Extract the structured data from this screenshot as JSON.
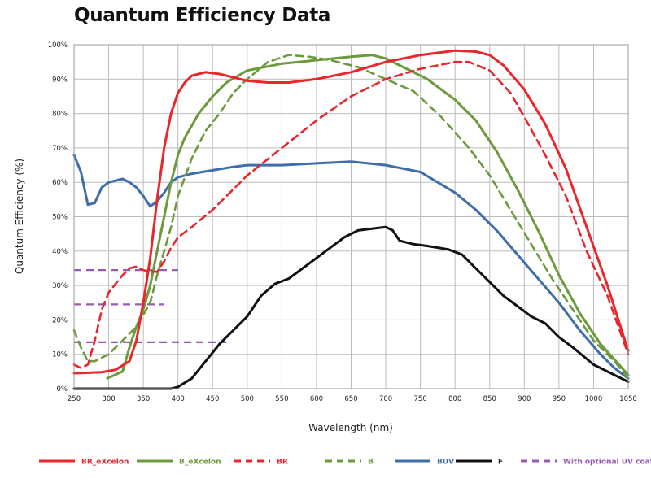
{
  "title": "Quantum Efficiency Data",
  "chart_data": {
    "type": "line",
    "title": "Quantum Efficiency Data",
    "xlabel": "Wavelength (nm)",
    "ylabel": "Quantum Efficiency (%)",
    "xlim": [
      250,
      1050
    ],
    "ylim": [
      0,
      100
    ],
    "xticks": [
      250,
      300,
      350,
      400,
      450,
      500,
      550,
      600,
      650,
      700,
      750,
      800,
      850,
      900,
      950,
      1000,
      1050
    ],
    "yticks": [
      0,
      10,
      20,
      30,
      40,
      50,
      60,
      70,
      80,
      90,
      100
    ],
    "xtick_labels": [
      "250",
      "300",
      "350",
      "400",
      "450",
      "500",
      "550",
      "600",
      "650",
      "700",
      "750",
      "800",
      "850",
      "900",
      "950",
      "1000",
      "1050"
    ],
    "ytick_labels": [
      "0%",
      "10%",
      "20%",
      "30%",
      "40%",
      "50%",
      "60%",
      "70%",
      "80%",
      "90%",
      "100%"
    ],
    "grid": true,
    "legend_position": "bottom",
    "series": [
      {
        "name": "BR_eXcelon",
        "color": "#e8262c",
        "dash": "solid",
        "points": [
          [
            250,
            4.5
          ],
          [
            290,
            4.8
          ],
          [
            310,
            5.5
          ],
          [
            330,
            8
          ],
          [
            340,
            14
          ],
          [
            350,
            25
          ],
          [
            360,
            38
          ],
          [
            370,
            55
          ],
          [
            380,
            70
          ],
          [
            390,
            80
          ],
          [
            400,
            86
          ],
          [
            410,
            89
          ],
          [
            420,
            91
          ],
          [
            440,
            92
          ],
          [
            460,
            91.5
          ],
          [
            480,
            90.5
          ],
          [
            500,
            89.5
          ],
          [
            530,
            89
          ],
          [
            560,
            89
          ],
          [
            600,
            90
          ],
          [
            650,
            92
          ],
          [
            700,
            95
          ],
          [
            750,
            97
          ],
          [
            800,
            98.3
          ],
          [
            830,
            98
          ],
          [
            850,
            97
          ],
          [
            870,
            94
          ],
          [
            900,
            87
          ],
          [
            930,
            77
          ],
          [
            960,
            64
          ],
          [
            990,
            47
          ],
          [
            1020,
            30
          ],
          [
            1050,
            11
          ]
        ]
      },
      {
        "name": "B_eXcelon",
        "color": "#6c9a3c",
        "dash": "solid",
        "points": [
          [
            298,
            3
          ],
          [
            320,
            5
          ],
          [
            330,
            12
          ],
          [
            340,
            18
          ],
          [
            350,
            23
          ],
          [
            360,
            30
          ],
          [
            370,
            40
          ],
          [
            380,
            50
          ],
          [
            390,
            60
          ],
          [
            400,
            68
          ],
          [
            410,
            73
          ],
          [
            430,
            80
          ],
          [
            450,
            85
          ],
          [
            470,
            89
          ],
          [
            500,
            92.5
          ],
          [
            550,
            94.5
          ],
          [
            600,
            95.5
          ],
          [
            650,
            96.5
          ],
          [
            680,
            97
          ],
          [
            700,
            96
          ],
          [
            730,
            93
          ],
          [
            760,
            90
          ],
          [
            800,
            84
          ],
          [
            830,
            78
          ],
          [
            860,
            69
          ],
          [
            890,
            58
          ],
          [
            920,
            46
          ],
          [
            950,
            33
          ],
          [
            980,
            22
          ],
          [
            1010,
            13
          ],
          [
            1050,
            4
          ]
        ]
      },
      {
        "name": "BR",
        "color": "#e8262c",
        "dash": "dashed",
        "points": [
          [
            250,
            7
          ],
          [
            260,
            6
          ],
          [
            270,
            7
          ],
          [
            280,
            14
          ],
          [
            290,
            23
          ],
          [
            300,
            28
          ],
          [
            320,
            33
          ],
          [
            330,
            35
          ],
          [
            340,
            35.5
          ],
          [
            350,
            34.5
          ],
          [
            360,
            34
          ],
          [
            370,
            34
          ],
          [
            380,
            37
          ],
          [
            390,
            41
          ],
          [
            400,
            44
          ],
          [
            420,
            47
          ],
          [
            450,
            52
          ],
          [
            480,
            58
          ],
          [
            500,
            62
          ],
          [
            550,
            70
          ],
          [
            600,
            78
          ],
          [
            650,
            85
          ],
          [
            700,
            90
          ],
          [
            750,
            93
          ],
          [
            800,
            95
          ],
          [
            820,
            95
          ],
          [
            850,
            92.5
          ],
          [
            880,
            86
          ],
          [
            900,
            79
          ],
          [
            930,
            68
          ],
          [
            960,
            56
          ],
          [
            990,
            40
          ],
          [
            1020,
            27
          ],
          [
            1050,
            10
          ]
        ]
      },
      {
        "name": "B",
        "color": "#6c9a3c",
        "dash": "dashed",
        "points": [
          [
            250,
            17
          ],
          [
            260,
            12
          ],
          [
            270,
            8
          ],
          [
            280,
            8
          ],
          [
            290,
            9
          ],
          [
            300,
            10
          ],
          [
            310,
            12
          ],
          [
            320,
            14
          ],
          [
            340,
            18
          ],
          [
            360,
            25
          ],
          [
            370,
            33
          ],
          [
            380,
            40
          ],
          [
            390,
            47
          ],
          [
            400,
            56
          ],
          [
            420,
            67
          ],
          [
            440,
            75
          ],
          [
            460,
            80
          ],
          [
            480,
            86
          ],
          [
            500,
            90
          ],
          [
            530,
            95
          ],
          [
            560,
            97
          ],
          [
            590,
            96.5
          ],
          [
            620,
            95.5
          ],
          [
            660,
            93.5
          ],
          [
            700,
            90
          ],
          [
            740,
            86.5
          ],
          [
            780,
            79
          ],
          [
            820,
            70
          ],
          [
            850,
            62
          ],
          [
            880,
            52
          ],
          [
            910,
            42
          ],
          [
            940,
            32
          ],
          [
            970,
            23
          ],
          [
            1000,
            14
          ],
          [
            1030,
            8
          ],
          [
            1050,
            3
          ]
        ]
      },
      {
        "name": "BUV",
        "color": "#3f6faa",
        "dash": "solid",
        "points": [
          [
            250,
            68
          ],
          [
            260,
            63
          ],
          [
            270,
            53.5
          ],
          [
            280,
            54
          ],
          [
            290,
            58.5
          ],
          [
            300,
            60
          ],
          [
            320,
            61
          ],
          [
            330,
            60
          ],
          [
            340,
            58.5
          ],
          [
            350,
            56
          ],
          [
            360,
            53
          ],
          [
            370,
            54.5
          ],
          [
            380,
            57
          ],
          [
            390,
            60
          ],
          [
            400,
            61.5
          ],
          [
            420,
            62.5
          ],
          [
            450,
            63.5
          ],
          [
            480,
            64.5
          ],
          [
            500,
            65
          ],
          [
            550,
            65
          ],
          [
            600,
            65.5
          ],
          [
            650,
            66
          ],
          [
            700,
            65
          ],
          [
            750,
            63
          ],
          [
            800,
            57
          ],
          [
            830,
            52
          ],
          [
            860,
            46
          ],
          [
            890,
            39
          ],
          [
            920,
            32
          ],
          [
            950,
            25
          ],
          [
            980,
            17
          ],
          [
            1010,
            10
          ],
          [
            1030,
            6
          ],
          [
            1050,
            3
          ]
        ]
      },
      {
        "name": "F",
        "color": "#111111",
        "dash": "solid",
        "points": [
          [
            250,
            0
          ],
          [
            390,
            0
          ],
          [
            400,
            0.5
          ],
          [
            420,
            3
          ],
          [
            440,
            8
          ],
          [
            460,
            13
          ],
          [
            480,
            17
          ],
          [
            500,
            21
          ],
          [
            520,
            27
          ],
          [
            540,
            30.5
          ],
          [
            560,
            32
          ],
          [
            580,
            35
          ],
          [
            600,
            38
          ],
          [
            620,
            41
          ],
          [
            640,
            44
          ],
          [
            660,
            46
          ],
          [
            680,
            46.5
          ],
          [
            700,
            47
          ],
          [
            710,
            46
          ],
          [
            720,
            43
          ],
          [
            740,
            42
          ],
          [
            760,
            41.5
          ],
          [
            790,
            40.5
          ],
          [
            810,
            39
          ],
          [
            830,
            35
          ],
          [
            850,
            31
          ],
          [
            870,
            27
          ],
          [
            890,
            24
          ],
          [
            910,
            21
          ],
          [
            930,
            19
          ],
          [
            950,
            15
          ],
          [
            970,
            12
          ],
          [
            1000,
            7
          ],
          [
            1030,
            4
          ],
          [
            1050,
            2
          ]
        ]
      },
      {
        "name": "With optional UV coating",
        "color": "#9b59b6",
        "dash": "dashed",
        "segments": [
          [
            [
              250,
              34.5
            ],
            [
              400,
              34.5
            ]
          ],
          [
            [
              250,
              24.5
            ],
            [
              380,
              24.5
            ]
          ],
          [
            [
              250,
              13.5
            ],
            [
              470,
              13.5
            ]
          ]
        ]
      }
    ]
  }
}
